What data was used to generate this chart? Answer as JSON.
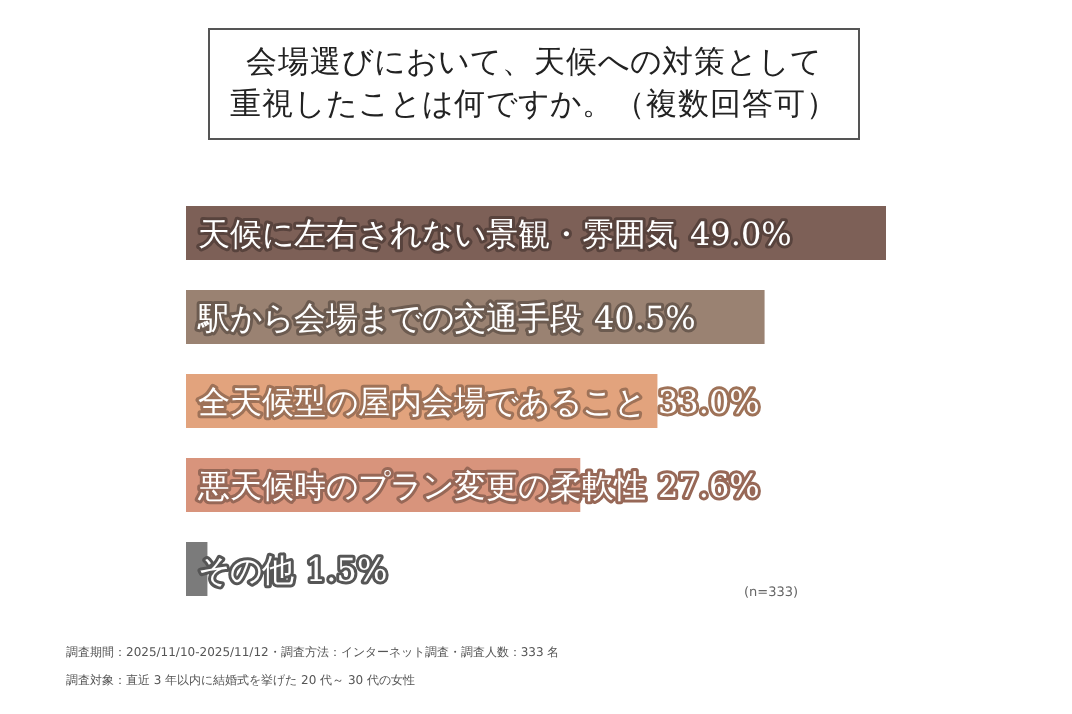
{
  "chart_data": {
    "type": "bar",
    "orientation": "horizontal",
    "title": "会場選びにおいて、天候への対策として",
    "subtitle": "重視したことは何ですか。（複数回答可）",
    "categories": [
      "天候に左右されない景観・雰囲気",
      "駅から会場までの交通手段",
      "全天候型の屋内会場であること",
      "悪天候時のプラン変更の柔軟性",
      "その他"
    ],
    "values": [
      49.0,
      40.5,
      33.0,
      27.6,
      1.5
    ],
    "value_labels": [
      "49.0%",
      "40.5%",
      "33.0%",
      "27.6%",
      "1.5%"
    ],
    "colors": [
      "#7d6057",
      "#9a8272",
      "#e2a37d",
      "#d8947c",
      "#7b7b7b"
    ],
    "annotations": [
      "(n=333)",
      "調査期間：2025/11/10-2025/11/12・調査方法：インターネット調査・調査人数：333 名",
      "調査対象：直近 3 年以内に結婚式を挙げた 20 代～ 30 代の女性"
    ]
  }
}
